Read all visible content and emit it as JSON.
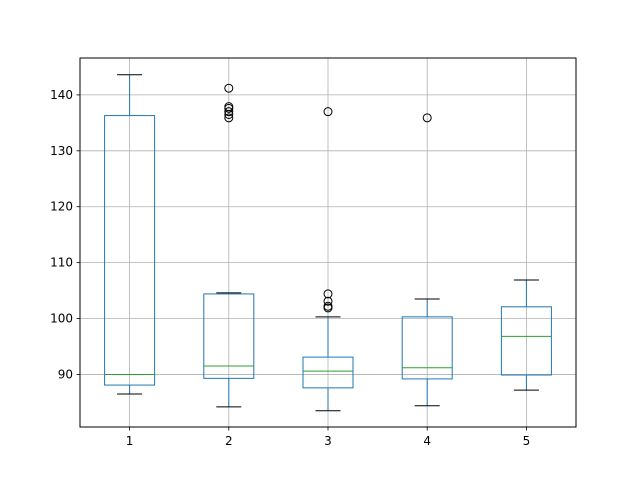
{
  "chart_data": {
    "type": "box",
    "title": "",
    "xlabel": "",
    "ylabel": "",
    "ylim": [
      80.6,
      146.6
    ],
    "grid": true,
    "categories": [
      "1",
      "2",
      "3",
      "4",
      "5"
    ],
    "y_ticks": [
      90,
      100,
      110,
      120,
      130,
      140
    ],
    "boxes": [
      {
        "label": "1",
        "whisker_low": 86.5,
        "q1": 88.1,
        "median": 90.0,
        "q3": 136.3,
        "whisker_high": 143.6,
        "outliers": []
      },
      {
        "label": "2",
        "whisker_low": 84.2,
        "q1": 89.3,
        "median": 91.5,
        "q3": 104.4,
        "whisker_high": 104.6,
        "outliers": [
          141.2,
          137.9,
          137.6,
          137.0,
          136.5,
          135.9
        ]
      },
      {
        "label": "3",
        "whisker_low": 83.5,
        "q1": 87.6,
        "median": 90.6,
        "q3": 93.1,
        "whisker_high": 100.3,
        "outliers": [
          137.0,
          104.4,
          103.1,
          102.2,
          101.9
        ]
      },
      {
        "label": "4",
        "whisker_low": 84.4,
        "q1": 89.2,
        "median": 91.2,
        "q3": 100.3,
        "whisker_high": 103.5,
        "outliers": [
          135.9
        ]
      },
      {
        "label": "5",
        "whisker_low": 87.2,
        "q1": 89.9,
        "median": 96.8,
        "q3": 102.1,
        "whisker_high": 106.9,
        "outliers": []
      }
    ],
    "colors": {
      "box": "#1f77b4",
      "median": "#2ca02c",
      "whisker": "#1f77b4",
      "cap": "#000000",
      "outlier": "#000000",
      "grid": "#b0b0b0",
      "axes": "#000000"
    }
  }
}
